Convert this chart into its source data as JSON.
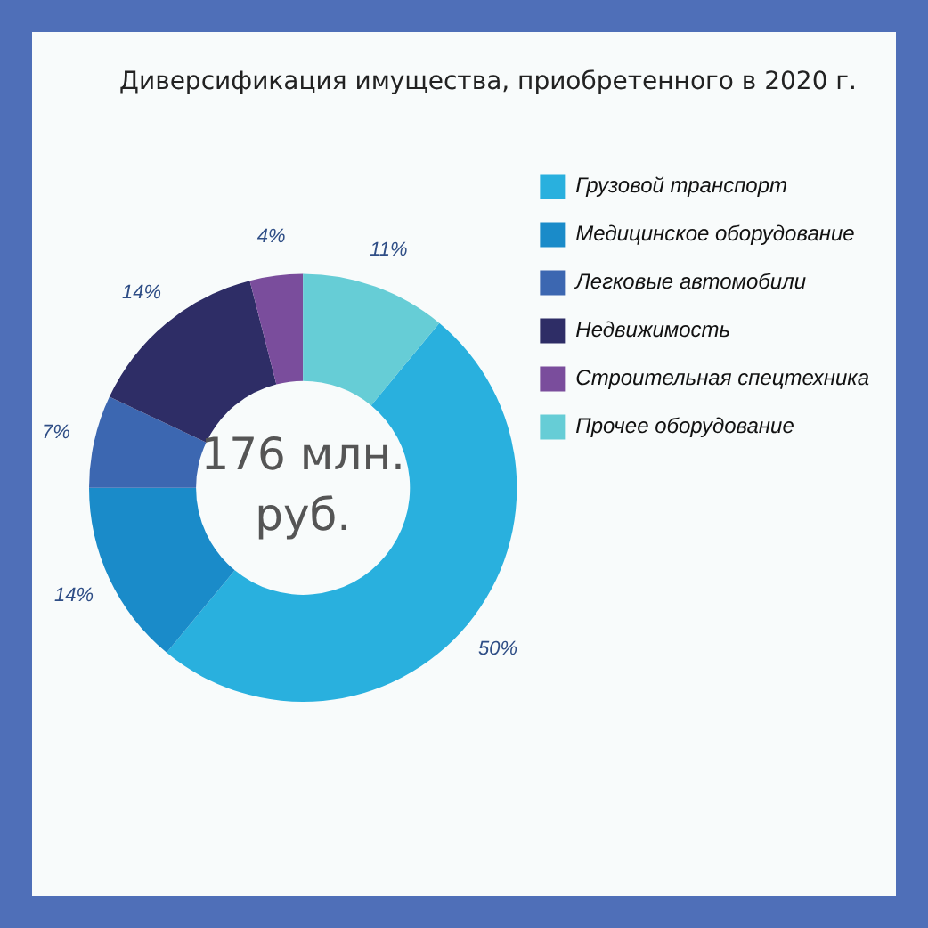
{
  "chart_data": {
    "type": "donut",
    "title": "Диверсификация имущества, приобретенного в 2020 г.",
    "categories": [
      "Грузовой транспорт",
      "Медицинское оборудование",
      "Легковые автомобили",
      "Недвижимость",
      "Строительная спецтехника",
      "Прочее оборудование"
    ],
    "values": [
      50,
      14,
      7,
      14,
      4,
      11
    ],
    "value_labels": [
      "50%",
      "14%",
      "7%",
      "14%",
      "4%",
      "11%"
    ],
    "colors": [
      "#29b0de",
      "#1a8bc9",
      "#3c67b1",
      "#2e2d66",
      "#7a4d9c",
      "#66cdd6"
    ],
    "legend": "top right",
    "annotations": [
      "176 млн. руб."
    ]
  }
}
